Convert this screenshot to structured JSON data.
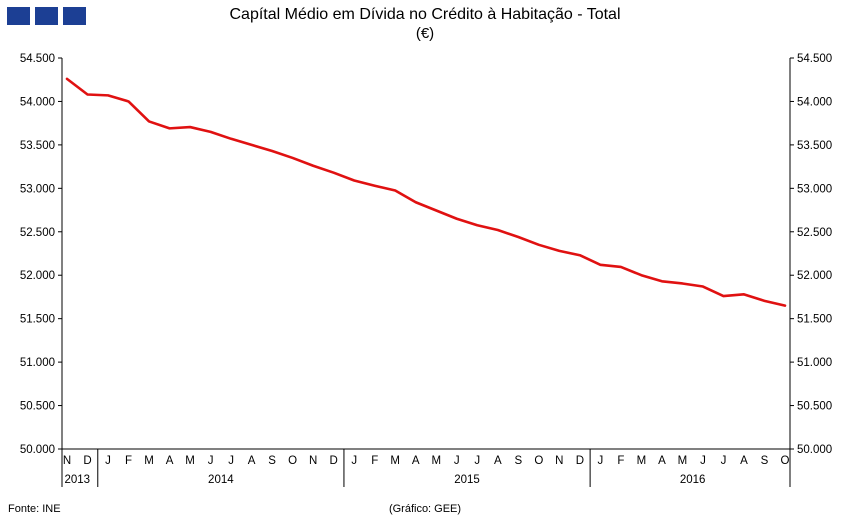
{
  "header": {
    "title": "Capítal Médio em Dívida no Crédito à Habitação - Total",
    "subtitle": "(€)",
    "logo_color": "#1C3F94"
  },
  "footer": {
    "source": "Fonte:  INE",
    "credit": "(Gráfico: GEE)"
  },
  "chart_data": {
    "type": "line",
    "title": "Capítal Médio em Dívida no Crédito à Habitação - Total (€)",
    "series": [
      {
        "name": "Capital médio em dívida",
        "color": "#E01111",
        "values": [
          54260,
          54080,
          54070,
          54000,
          53770,
          53690,
          53705,
          53650,
          53570,
          53500,
          53430,
          53350,
          53260,
          53180,
          53090,
          53030,
          52975,
          52840,
          52745,
          52650,
          52575,
          52520,
          52440,
          52350,
          52280,
          52230,
          52120,
          52095,
          52000,
          51930,
          51905,
          51870,
          51760,
          51780,
          51705,
          51650
        ]
      }
    ],
    "x_months": [
      "N",
      "D",
      "J",
      "F",
      "M",
      "A",
      "M",
      "J",
      "J",
      "A",
      "S",
      "O",
      "N",
      "D",
      "J",
      "F",
      "M",
      "A",
      "M",
      "J",
      "J",
      "A",
      "S",
      "O",
      "N",
      "D",
      "J",
      "F",
      "M",
      "A",
      "M",
      "J",
      "J",
      "A",
      "S",
      "O"
    ],
    "year_groups": [
      {
        "label": "2013",
        "count": 2
      },
      {
        "label": "2014",
        "count": 12
      },
      {
        "label": "2015",
        "count": 12
      },
      {
        "label": "2016",
        "count": 10
      }
    ],
    "ylim": [
      50000,
      54500
    ],
    "ytick_step": 500,
    "ytick_labels": [
      "50.000",
      "50.500",
      "51.000",
      "51.500",
      "52.000",
      "52.500",
      "53.000",
      "53.500",
      "54.000",
      "54.500"
    ],
    "grid": "off",
    "legend": "none",
    "right_axis_mirror": true
  }
}
